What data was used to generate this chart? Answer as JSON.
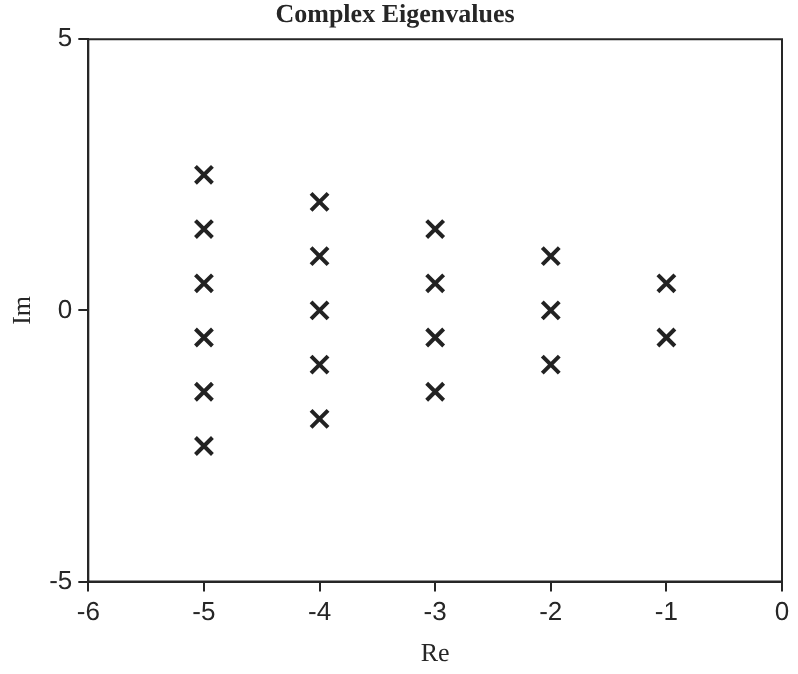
{
  "chart_data": {
    "type": "scatter",
    "title": "Complex Eigenvalues",
    "xlabel": "Re",
    "ylabel": "Im",
    "x": [
      -5,
      -5,
      -5,
      -5,
      -5,
      -5,
      -4,
      -4,
      -4,
      -4,
      -4,
      -3,
      -3,
      -3,
      -3,
      -2,
      -2,
      -2,
      -1,
      -1
    ],
    "values": [
      2.5,
      1.5,
      0.5,
      -0.5,
      -1.5,
      -2.5,
      2,
      1,
      0,
      -1,
      -2,
      1.5,
      0.5,
      -0.5,
      -1.5,
      1,
      0,
      -1,
      0.5,
      -0.5
    ],
    "color": "#222222",
    "marker": "cross",
    "xlim": [
      -6,
      0
    ],
    "xticks": [
      -6,
      -5,
      -4,
      -3,
      -2,
      -1,
      0
    ],
    "ylim": [
      -5,
      5
    ],
    "yticks": [
      -5,
      0,
      5
    ],
    "grid": false,
    "legend": false
  }
}
